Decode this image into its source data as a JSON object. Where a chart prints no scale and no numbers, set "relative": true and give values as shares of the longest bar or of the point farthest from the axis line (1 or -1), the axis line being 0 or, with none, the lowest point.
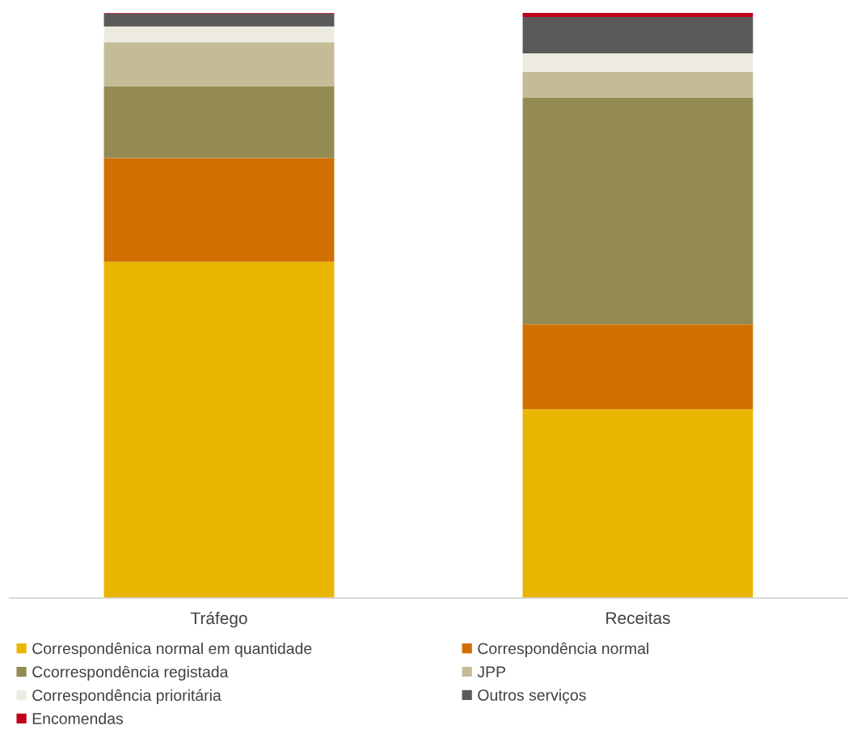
{
  "chart_data": {
    "type": "bar",
    "relative": true,
    "stacked": true,
    "categories": [
      "Tráfego",
      "Receitas"
    ],
    "series": [
      {
        "name": "Correspondênica normal em quantidade",
        "color": "#e8b600",
        "values": [
          0.575,
          0.323
        ]
      },
      {
        "name": "Correspondência normal",
        "color": "#d16f00",
        "values": [
          0.177,
          0.145
        ]
      },
      {
        "name": "Ccorrespondência registada",
        "color": "#948b54",
        "values": [
          0.123,
          0.387
        ]
      },
      {
        "name": "JPP",
        "color": "#c4bc96",
        "values": [
          0.075,
          0.044
        ]
      },
      {
        "name": "Correspondência prioritária",
        "color": "#edebe0",
        "values": [
          0.027,
          0.032
        ]
      },
      {
        "name": "Outros serviços",
        "color": "#5a5a5a",
        "values": [
          0.022,
          0.062
        ]
      },
      {
        "name": "Encomendas",
        "color": "#c00018",
        "values": [
          0.001,
          0.007
        ]
      }
    ],
    "legend": "bottom",
    "grid": false
  }
}
